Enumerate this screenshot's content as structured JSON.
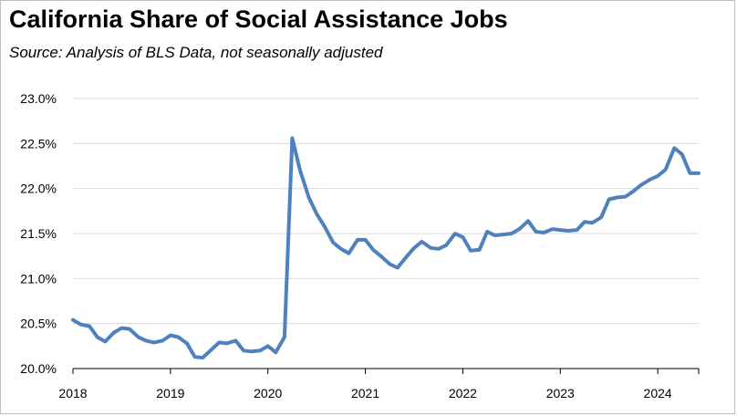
{
  "title": "California Share of Social Assistance Jobs",
  "subtitle": "Source:  Analysis of BLS Data, not seasonally adjusted",
  "chart_data": {
    "type": "line",
    "title": "California Share of Social Assistance Jobs",
    "subtitle": "Source:  Analysis of BLS Data, not seasonally adjusted",
    "xlabel": "",
    "ylabel": "",
    "ylim": [
      20.0,
      23.0
    ],
    "xlim": [
      2018.0,
      2024.42
    ],
    "grid": true,
    "legend": "none",
    "yticks": [
      20.0,
      20.5,
      21.0,
      21.5,
      22.0,
      22.5,
      23.0
    ],
    "ytick_labels": [
      "20.0%",
      "20.5%",
      "21.0%",
      "21.5%",
      "22.0%",
      "22.5%",
      "23.0%"
    ],
    "xticks": [
      2018,
      2019,
      2020,
      2021,
      2022,
      2023,
      2024
    ],
    "xtick_labels": [
      "2018",
      "2019",
      "2020",
      "2021",
      "2022",
      "2023",
      "2024"
    ],
    "series": [
      {
        "name": "California Share of Social Assistance Jobs",
        "color": "#4f81bd",
        "x": [
          2018.0,
          2018.08,
          2018.17,
          2018.25,
          2018.33,
          2018.42,
          2018.5,
          2018.58,
          2018.67,
          2018.75,
          2018.83,
          2018.92,
          2019.0,
          2019.08,
          2019.17,
          2019.25,
          2019.33,
          2019.42,
          2019.5,
          2019.58,
          2019.67,
          2019.75,
          2019.83,
          2019.92,
          2020.0,
          2020.08,
          2020.17,
          2020.25,
          2020.33,
          2020.42,
          2020.5,
          2020.58,
          2020.67,
          2020.75,
          2020.83,
          2020.92,
          2021.0,
          2021.08,
          2021.17,
          2021.25,
          2021.33,
          2021.42,
          2021.5,
          2021.58,
          2021.67,
          2021.75,
          2021.83,
          2021.92,
          2022.0,
          2022.08,
          2022.17,
          2022.25,
          2022.33,
          2022.42,
          2022.5,
          2022.58,
          2022.67,
          2022.75,
          2022.83,
          2022.92,
          2023.0,
          2023.08,
          2023.17,
          2023.25,
          2023.33,
          2023.42,
          2023.5,
          2023.58,
          2023.67,
          2023.75,
          2023.83,
          2023.92,
          2024.0,
          2024.08,
          2024.17,
          2024.25,
          2024.33,
          2024.42
        ],
        "values": [
          20.54,
          20.49,
          20.47,
          20.35,
          20.3,
          20.4,
          20.45,
          20.44,
          20.35,
          20.31,
          20.29,
          20.31,
          20.37,
          20.35,
          20.28,
          20.13,
          20.12,
          20.21,
          20.29,
          20.28,
          20.31,
          20.2,
          20.19,
          20.2,
          20.25,
          20.18,
          20.35,
          22.56,
          22.2,
          21.9,
          21.72,
          21.58,
          21.4,
          21.33,
          21.28,
          21.43,
          21.43,
          21.32,
          21.24,
          21.16,
          21.12,
          21.24,
          21.34,
          21.41,
          21.34,
          21.33,
          21.37,
          21.5,
          21.46,
          21.31,
          21.32,
          21.52,
          21.48,
          21.49,
          21.5,
          21.55,
          21.64,
          21.52,
          21.51,
          21.55,
          21.54,
          21.53,
          21.54,
          21.63,
          21.62,
          21.68,
          21.88,
          21.9,
          21.91,
          21.97,
          22.04,
          22.1,
          22.14,
          22.21,
          22.45,
          22.38,
          22.17,
          22.17
        ]
      }
    ]
  }
}
